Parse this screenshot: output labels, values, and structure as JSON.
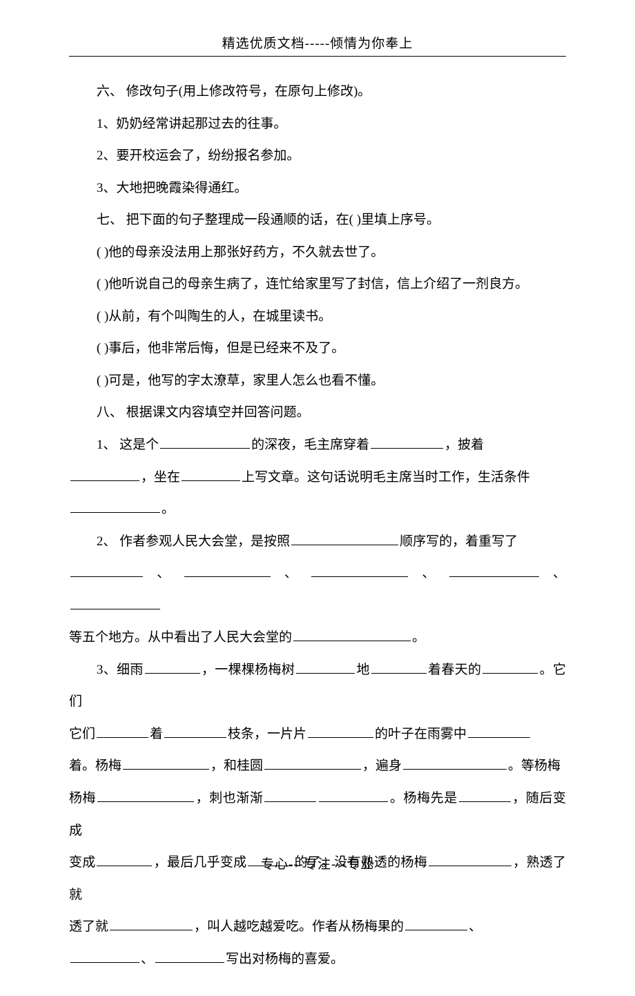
{
  "header": "精选优质文档-----倾情为你奉上",
  "footer": "专心---专注---专业",
  "section6": {
    "title": "六、 修改句子(用上修改符号，在原句上修改)。",
    "q1": "1、奶奶经常讲起那过去的往事。",
    "q2": "2、要开校运会了，纷纷报名参加。",
    "q3": "3、大地把晚霞染得通红。"
  },
  "section7": {
    "title": "七、 把下面的句子整理成一段通顺的话，在( )里填上序号。",
    "l1": "( )他的母亲没法用上那张好药方，不久就去世了。",
    "l2": "( )他听说自己的母亲生病了，连忙给家里写了封信，信上介绍了一剂良方。",
    "l3": "( )从前，有个叫陶生的人，在城里读书。",
    "l4": "( )事后，他非常后悔，但是已经来不及了。",
    "l5": "( )可是，他写的字太潦草，家里人怎么也看不懂。"
  },
  "section8": {
    "title": "八、 根据课文内容填空并回答问题。",
    "q1a": "1、 这是个",
    "q1b": "的深夜，毛主席穿着",
    "q1c": "，披着",
    "q1d": "，坐在",
    "q1e": "上写文章。这句话说明毛主席当时工作，生活条件",
    "q1f": "。",
    "q2a": "2、 作者参观人民大会堂，是按照",
    "q2b": "顺序写的，着重写了",
    "q2c": "、",
    "q2d": "、",
    "q2e": "、",
    "q2f": "、",
    "q2g": "等五个地方。从中看出了人民大会堂的",
    "q2h": "。",
    "q3a": "3、细雨",
    "q3b": "，一棵棵杨梅树",
    "q3c": "地",
    "q3d": "着春天的",
    "q3e": "。它们",
    "q3f": "着",
    "q3g": "枝条，一片片",
    "q3h": "的叶子在雨雾中",
    "q3i": "着。杨梅",
    "q3j": "，和桂圆",
    "q3k": "，遍身",
    "q3l": "。等杨梅",
    "q3m": "，刺也渐渐",
    "q3n": "。杨梅先是",
    "q3o": "，随后变成",
    "q3p": "，最后几乎变成",
    "q3q": "的了。没有熟透的杨梅",
    "q3r": "，熟透了就",
    "q3s": "，叫人越吃越爱吃。作者从杨梅果的",
    "q3t": "、",
    "q3u": "、",
    "q3v": "写出对杨梅的喜爱。"
  },
  "blanks": {
    "w130": 130,
    "w110": 110,
    "w100": 100,
    "w95": 95,
    "w90": 90,
    "w85": 85,
    "w80": 80,
    "w75": 75,
    "w70": 70,
    "w65": 65,
    "w170": 170,
    "w155": 155,
    "w150": 150,
    "w140": 140,
    "w125": 125,
    "w120": 120,
    "w105": 105
  }
}
